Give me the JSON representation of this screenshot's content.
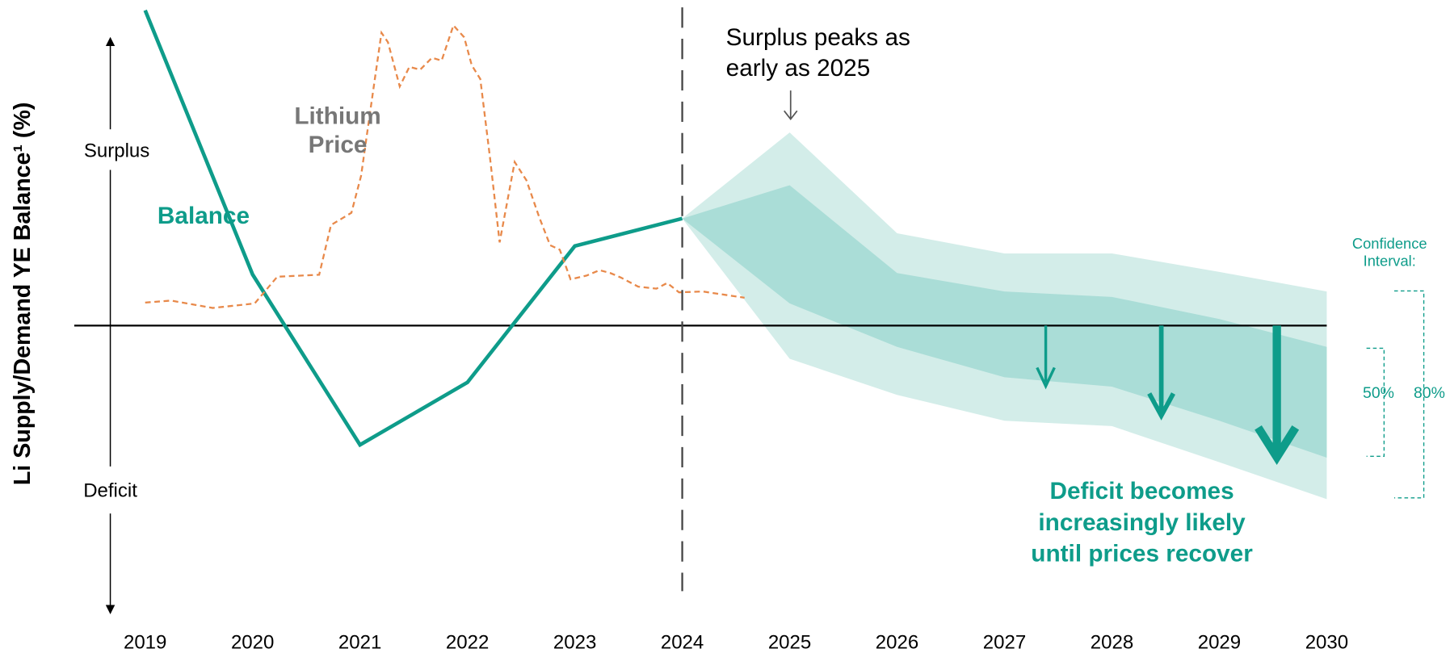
{
  "chart_data": {
    "type": "line",
    "y_label": "Li Supply/Demand YE Balance¹ (%)",
    "surplus_label": "Surplus",
    "deficit_label": "Deficit",
    "xlim": [
      2018.34,
      2030
    ],
    "ylim": [
      -10,
      10
    ],
    "xticks": [
      2019,
      2020,
      2021,
      2022,
      2023,
      2024,
      2025,
      2026,
      2027,
      2028,
      2029,
      2030
    ],
    "forecast_start": 2024,
    "series": [
      {
        "name": "Balance",
        "color": "#0e9c8a",
        "x": [
          2019,
          2020,
          2021,
          2022,
          2023,
          2024
        ],
        "values": [
          11.1,
          1.8,
          -4.2,
          -2.0,
          2.8,
          3.77
        ]
      },
      {
        "name": "Lithium Price",
        "color": "#e8894a",
        "x": [
          2019.0,
          2019.24,
          2019.63,
          2020.02,
          2020.23,
          2020.62,
          2020.73,
          2020.92,
          2021.01,
          2021.12,
          2021.2,
          2021.26,
          2021.37,
          2021.46,
          2021.56,
          2021.67,
          2021.76,
          2021.87,
          2021.97,
          2022.04,
          2022.12,
          2022.21,
          2022.3,
          2022.44,
          2022.55,
          2022.67,
          2022.77,
          2022.86,
          2022.96,
          2023.11,
          2023.23,
          2023.33,
          2023.43,
          2023.59,
          2023.76,
          2023.86,
          2023.97,
          2024.19,
          2024.58
        ],
        "values": [
          0.81,
          0.88,
          0.62,
          0.78,
          1.72,
          1.79,
          3.54,
          3.97,
          5.27,
          8.2,
          10.31,
          9.98,
          8.42,
          9.11,
          9.01,
          9.43,
          9.33,
          10.57,
          10.15,
          9.17,
          8.68,
          5.92,
          2.93,
          5.76,
          5.11,
          3.8,
          2.83,
          2.67,
          1.63,
          1.76,
          1.95,
          1.85,
          1.69,
          1.37,
          1.3,
          1.5,
          1.17,
          1.2,
          0.98
        ]
      }
    ],
    "bands_title": "Confidence Interval:",
    "bands": [
      {
        "name": "80%",
        "color": "#d3ede9",
        "x": [
          2024,
          2025,
          2026,
          2027,
          2028,
          2029,
          2030
        ],
        "upper": [
          3.77,
          6.8,
          3.25,
          2.54,
          2.54,
          1.89,
          1.2
        ],
        "lower": [
          3.77,
          -1.17,
          -2.44,
          -3.35,
          -3.54,
          -4.81,
          -6.11
        ]
      },
      {
        "name": "50%",
        "color": "#aaddd7",
        "x": [
          2024,
          2025,
          2026,
          2027,
          2028,
          2029,
          2030
        ],
        "upper": [
          3.77,
          4.94,
          1.85,
          1.2,
          1.01,
          0.23,
          -0.75
        ],
        "lower": [
          3.77,
          0.78,
          -0.75,
          -1.82,
          -2.15,
          -3.35,
          -4.65
        ]
      }
    ],
    "annotations": [
      "Surplus peaks as early as 2025",
      "Deficit becomes increasingly likely until prices recover"
    ]
  }
}
